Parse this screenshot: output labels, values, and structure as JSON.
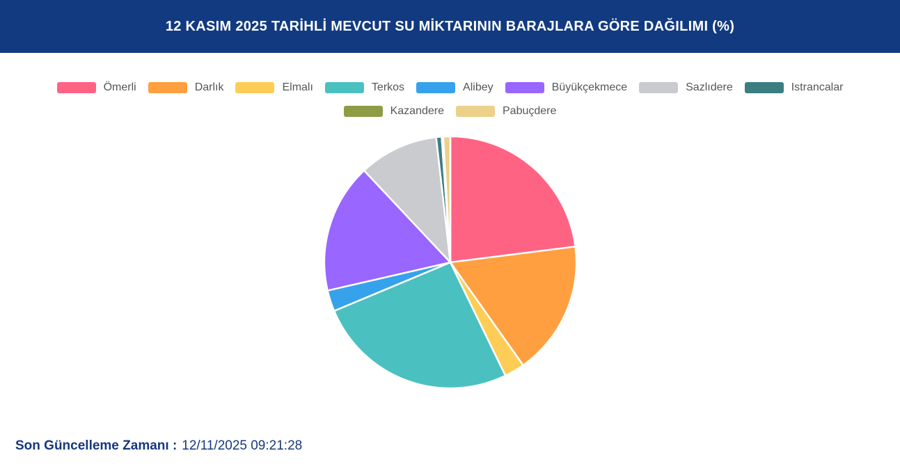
{
  "header": {
    "title": "12 KASIM 2025 TARİHLİ MEVCUT SU MİKTARININ BARAJLARA GÖRE DAĞILIMI (%)"
  },
  "theme": {
    "header_bg": "#123A80",
    "header_text": "#FFFFFF",
    "legend_text": "#55565A",
    "footer_text": "#16387D",
    "pie_border": "#FFFFFF"
  },
  "chart_data": {
    "type": "pie",
    "title": "12 KASIM 2025 TARİHLİ MEVCUT SU MİKTARININ BARAJLARA GÖRE DAĞILIMI (%)",
    "unit": "%",
    "categories": [
      "Ömerli",
      "Darlık",
      "Elmalı",
      "Terkos",
      "Alibey",
      "Büyükçekmece",
      "Sazlıdere",
      "Istrancalar",
      "Kazandere",
      "Pabuçdere"
    ],
    "values": [
      23.0,
      17.2,
      2.6,
      25.9,
      2.7,
      16.6,
      10.2,
      0.7,
      0.2,
      0.9
    ],
    "colors": [
      "#FF6384",
      "#FF9F40",
      "#FFCD56",
      "#4BC0C0",
      "#36A2EB",
      "#9966FF",
      "#C9CBCF",
      "#3C7D82",
      "#8F9C45",
      "#EBD189"
    ],
    "legend_position": "top",
    "legend_rows": [
      8,
      2
    ],
    "start_angle_deg": 0,
    "direction": "clockwise",
    "total": 100.0
  },
  "footer": {
    "label": "Son Güncelleme Zamanı :",
    "value": "12/11/2025 09:21:28"
  }
}
